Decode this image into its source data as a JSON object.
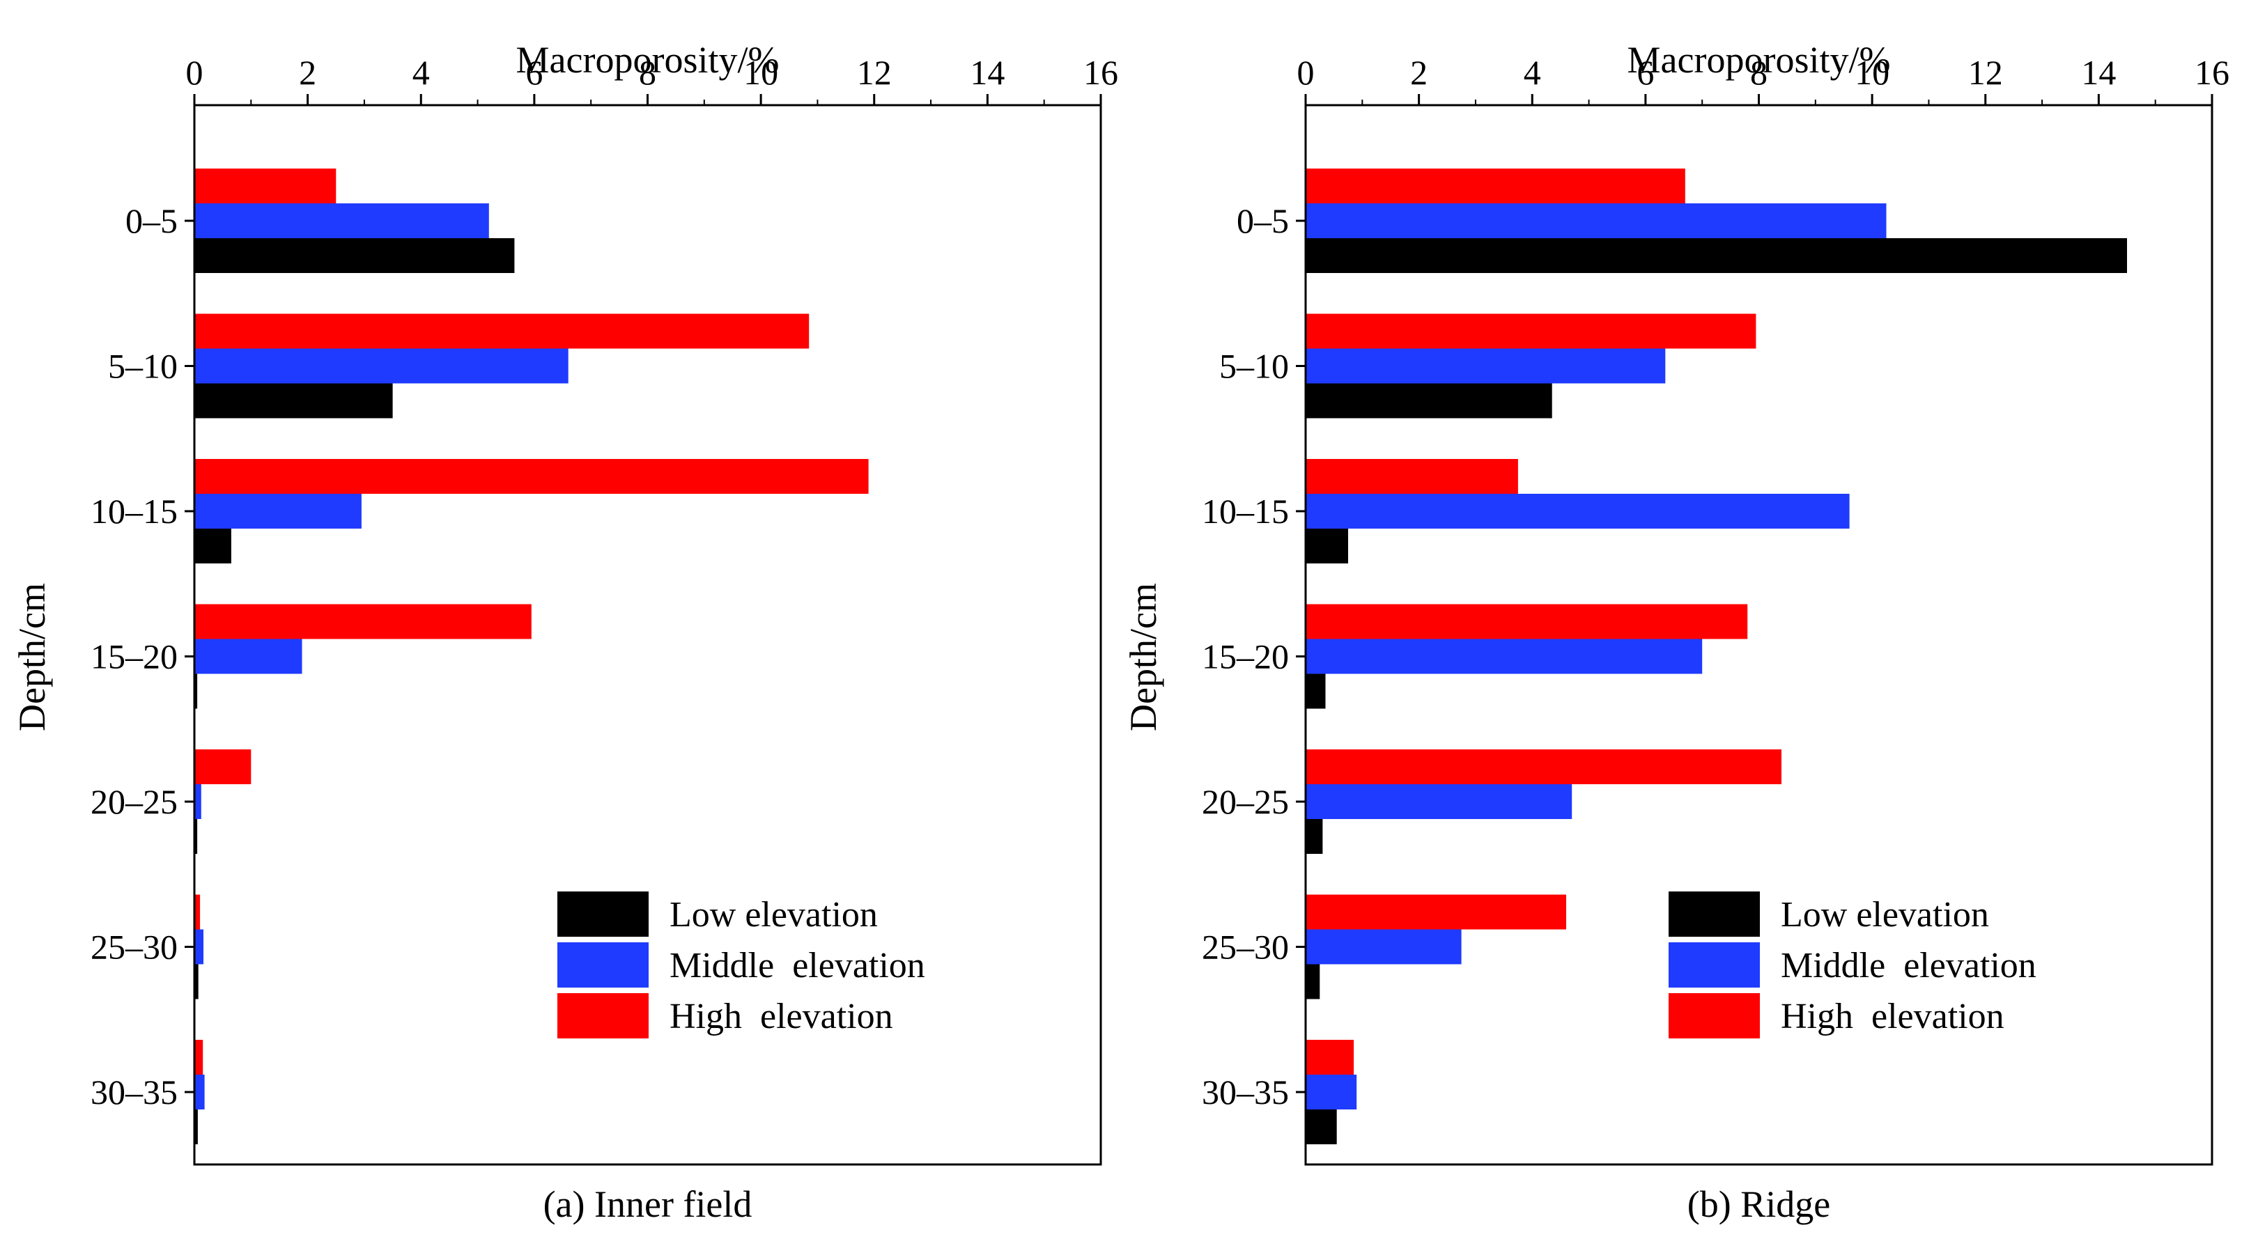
{
  "chart_data": [
    {
      "type": "bar",
      "orientation": "horizontal",
      "title": "(a) Inner field",
      "xlabel": "Macroporosity/%",
      "ylabel": "Depth/cm",
      "xlim": [
        0,
        16
      ],
      "xticks": [
        "0",
        "2",
        "4",
        "6",
        "8",
        "10",
        "12",
        "14",
        "16"
      ],
      "categories": [
        "0–5",
        "5–10",
        "10–15",
        "15–20",
        "20–25",
        "25–30",
        "30–35"
      ],
      "series": [
        {
          "name": "Low elevation",
          "color": "#000000",
          "values": [
            5.65,
            3.5,
            0.65,
            0.05,
            0.05,
            0.07,
            0.06
          ]
        },
        {
          "name": "Middle  elevation",
          "color": "#1f3bff",
          "values": [
            5.2,
            6.6,
            2.95,
            1.9,
            0.12,
            0.16,
            0.18
          ]
        },
        {
          "name": "High  elevation",
          "color": "#ff0000",
          "values": [
            2.5,
            10.85,
            11.9,
            5.95,
            1.0,
            0.1,
            0.15
          ]
        }
      ],
      "legend": {
        "position": "bottom-right",
        "entries": [
          "Low elevation",
          "Middle  elevation",
          "High  elevation"
        ]
      }
    },
    {
      "type": "bar",
      "orientation": "horizontal",
      "title": "(b) Ridge",
      "xlabel": "Macroporosity/%",
      "ylabel": "Depth/cm",
      "xlim": [
        0,
        16
      ],
      "xticks": [
        "0",
        "2",
        "4",
        "6",
        "8",
        "10",
        "12",
        "14",
        "16"
      ],
      "categories": [
        "0–5",
        "5–10",
        "10–15",
        "15–20",
        "20–25",
        "25–30",
        "30–35"
      ],
      "series": [
        {
          "name": "Low elevation",
          "color": "#000000",
          "values": [
            14.5,
            4.35,
            0.75,
            0.35,
            0.3,
            0.25,
            0.55
          ]
        },
        {
          "name": "Middle  elevation",
          "color": "#1f3bff",
          "values": [
            10.25,
            6.35,
            9.6,
            7.0,
            4.7,
            2.75,
            0.9
          ]
        },
        {
          "name": "High  elevation",
          "color": "#ff0000",
          "values": [
            6.7,
            7.95,
            3.75,
            7.8,
            8.4,
            4.6,
            0.85
          ]
        }
      ],
      "legend": {
        "position": "bottom-right",
        "entries": [
          "Low elevation",
          "Middle  elevation",
          "High  elevation"
        ]
      }
    }
  ]
}
